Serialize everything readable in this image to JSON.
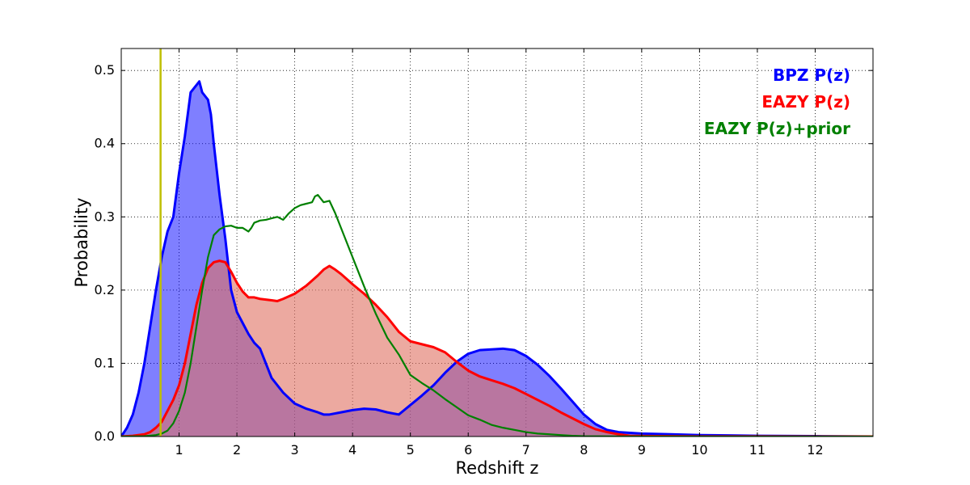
{
  "chart_data": {
    "type": "area",
    "title": "",
    "xlabel": "Redshift z",
    "ylabel": "Probability",
    "xlim": [
      0,
      13
    ],
    "ylim": [
      0,
      0.53
    ],
    "xticks": [
      "1",
      "2",
      "3",
      "4",
      "5",
      "6",
      "7",
      "8",
      "9",
      "10",
      "11",
      "12"
    ],
    "yticks": [
      "0.0",
      "0.1",
      "0.2",
      "0.3",
      "0.4",
      "0.5"
    ],
    "grid": true,
    "legend_position": "top-right",
    "vline": {
      "x": 0.68,
      "color": "#bfbf00"
    },
    "series": [
      {
        "name": "BPZ P(z)",
        "color": "#0000ff",
        "fill_color": "#0000ff",
        "fill_opacity": 0.5,
        "x": [
          0,
          0.1,
          0.2,
          0.3,
          0.4,
          0.5,
          0.6,
          0.7,
          0.8,
          0.85,
          0.9,
          1.0,
          1.1,
          1.2,
          1.3,
          1.35,
          1.4,
          1.45,
          1.5,
          1.55,
          1.6,
          1.7,
          1.8,
          1.9,
          2.0,
          2.1,
          2.2,
          2.3,
          2.4,
          2.45,
          2.5,
          2.6,
          2.8,
          3.0,
          3.2,
          3.4,
          3.5,
          3.6,
          3.8,
          4.0,
          4.2,
          4.4,
          4.6,
          4.8,
          5.0,
          5.2,
          5.4,
          5.6,
          5.8,
          6.0,
          6.2,
          6.4,
          6.6,
          6.8,
          7.0,
          7.2,
          7.4,
          7.6,
          7.8,
          8.0,
          8.2,
          8.4,
          8.6,
          8.8,
          9.0,
          9.5,
          10.0,
          10.5,
          11.0,
          12.0,
          13.0
        ],
        "y": [
          0.0,
          0.012,
          0.03,
          0.06,
          0.1,
          0.15,
          0.2,
          0.245,
          0.28,
          0.29,
          0.3,
          0.36,
          0.41,
          0.47,
          0.48,
          0.485,
          0.47,
          0.465,
          0.46,
          0.44,
          0.4,
          0.33,
          0.27,
          0.2,
          0.17,
          0.155,
          0.14,
          0.128,
          0.12,
          0.11,
          0.1,
          0.08,
          0.06,
          0.045,
          0.038,
          0.033,
          0.03,
          0.03,
          0.033,
          0.036,
          0.038,
          0.037,
          0.033,
          0.03,
          0.043,
          0.056,
          0.07,
          0.087,
          0.102,
          0.113,
          0.118,
          0.119,
          0.12,
          0.118,
          0.11,
          0.098,
          0.083,
          0.066,
          0.048,
          0.03,
          0.017,
          0.009,
          0.006,
          0.005,
          0.004,
          0.003,
          0.002,
          0.0015,
          0.001,
          0.0005,
          0.0
        ]
      },
      {
        "name": "EAZY P(z)",
        "color": "#ff0000",
        "fill_color": "#e07060",
        "fill_opacity": 0.6,
        "x": [
          0,
          0.2,
          0.4,
          0.5,
          0.6,
          0.7,
          0.8,
          0.9,
          1.0,
          1.1,
          1.2,
          1.3,
          1.4,
          1.5,
          1.6,
          1.7,
          1.8,
          1.9,
          2.0,
          2.1,
          2.2,
          2.3,
          2.4,
          2.5,
          2.6,
          2.7,
          2.8,
          3.0,
          3.2,
          3.4,
          3.5,
          3.6,
          3.7,
          3.8,
          3.9,
          4.0,
          4.2,
          4.4,
          4.6,
          4.8,
          5.0,
          5.2,
          5.4,
          5.6,
          5.8,
          6.0,
          6.2,
          6.4,
          6.6,
          6.8,
          7.0,
          7.2,
          7.4,
          7.6,
          7.8,
          8.0,
          8.2,
          8.4,
          8.6,
          8.8,
          9.0,
          9.5,
          10.0,
          11.0,
          13.0
        ],
        "y": [
          0.0,
          0.001,
          0.003,
          0.006,
          0.012,
          0.02,
          0.035,
          0.05,
          0.07,
          0.1,
          0.14,
          0.18,
          0.21,
          0.23,
          0.238,
          0.24,
          0.238,
          0.225,
          0.21,
          0.198,
          0.19,
          0.19,
          0.188,
          0.187,
          0.186,
          0.185,
          0.188,
          0.195,
          0.206,
          0.22,
          0.228,
          0.233,
          0.228,
          0.222,
          0.215,
          0.208,
          0.195,
          0.18,
          0.163,
          0.143,
          0.13,
          0.126,
          0.122,
          0.115,
          0.102,
          0.09,
          0.082,
          0.077,
          0.072,
          0.066,
          0.058,
          0.05,
          0.042,
          0.033,
          0.025,
          0.017,
          0.01,
          0.006,
          0.003,
          0.001,
          0.0007,
          0.0004,
          0.0002,
          0.0001,
          0.0
        ]
      },
      {
        "name": "EAZY P(z)+prior",
        "color": "#008000",
        "fill_color": "#000000",
        "fill_opacity": 0.0,
        "x": [
          0,
          0.4,
          0.6,
          0.7,
          0.8,
          0.9,
          1.0,
          1.1,
          1.2,
          1.3,
          1.4,
          1.5,
          1.6,
          1.7,
          1.8,
          1.9,
          2.0,
          2.1,
          2.2,
          2.25,
          2.3,
          2.4,
          2.5,
          2.6,
          2.7,
          2.8,
          2.9,
          3.0,
          3.1,
          3.2,
          3.3,
          3.35,
          3.4,
          3.45,
          3.5,
          3.6,
          3.7,
          3.8,
          4.0,
          4.2,
          4.4,
          4.6,
          4.8,
          5.0,
          5.2,
          5.4,
          5.6,
          5.8,
          6.0,
          6.2,
          6.4,
          6.6,
          6.8,
          7.0,
          7.2,
          7.4,
          7.6,
          7.8,
          8.0,
          8.5,
          9.0,
          13.0
        ],
        "y": [
          0.0,
          0.0005,
          0.002,
          0.004,
          0.008,
          0.018,
          0.035,
          0.06,
          0.1,
          0.15,
          0.2,
          0.245,
          0.275,
          0.283,
          0.287,
          0.288,
          0.285,
          0.285,
          0.28,
          0.285,
          0.292,
          0.295,
          0.296,
          0.298,
          0.3,
          0.296,
          0.305,
          0.312,
          0.316,
          0.318,
          0.32,
          0.328,
          0.33,
          0.325,
          0.32,
          0.322,
          0.305,
          0.285,
          0.245,
          0.205,
          0.168,
          0.135,
          0.112,
          0.084,
          0.073,
          0.063,
          0.051,
          0.04,
          0.029,
          0.023,
          0.016,
          0.012,
          0.009,
          0.006,
          0.004,
          0.003,
          0.002,
          0.001,
          0.0005,
          0.0002,
          0.0001,
          0.0
        ]
      }
    ]
  }
}
